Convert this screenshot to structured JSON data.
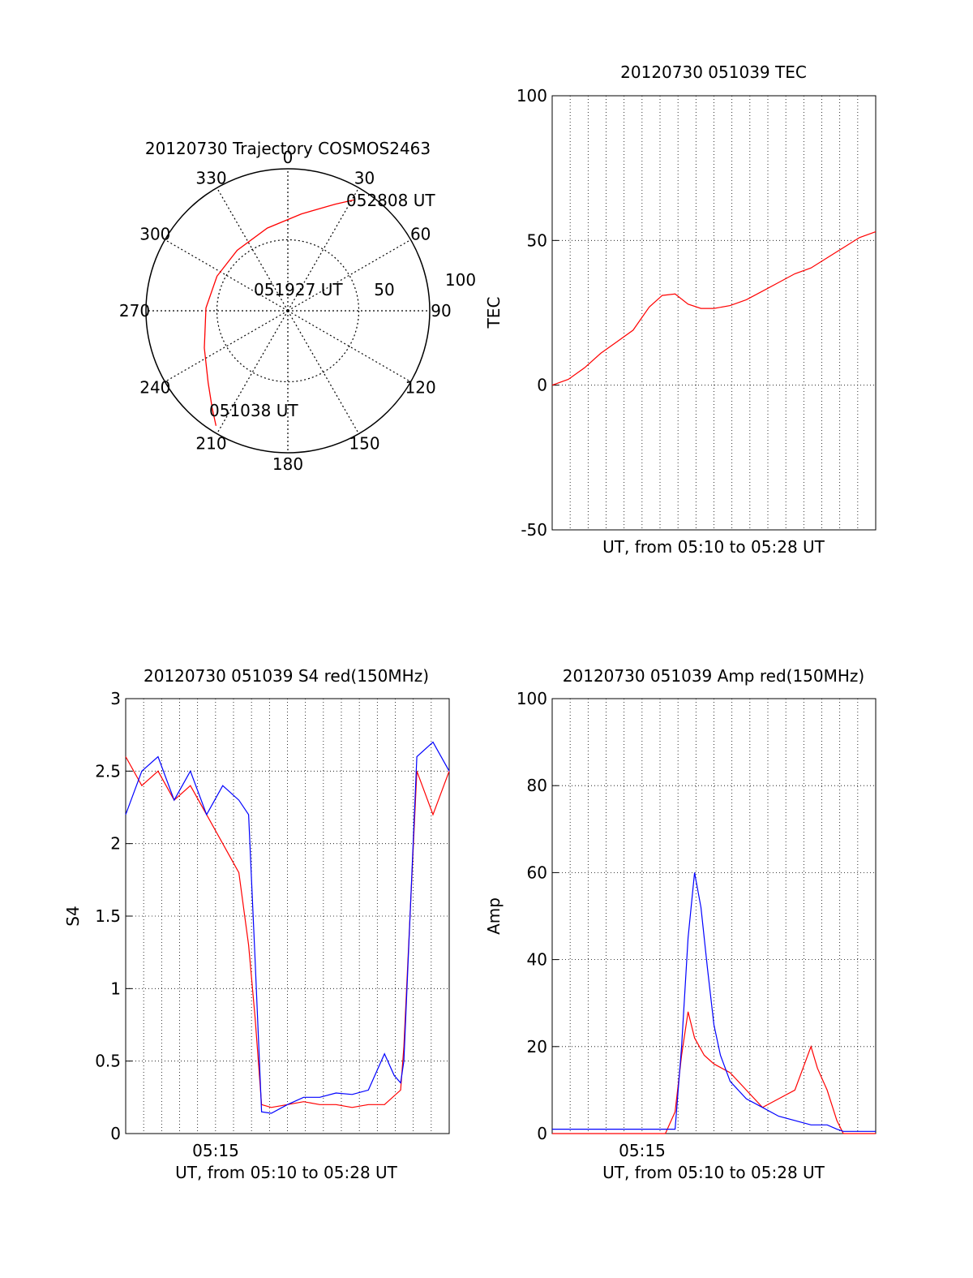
{
  "colors": {
    "red": "#ff0000",
    "blue": "#0000ff",
    "axis": "#000000",
    "grid": "#000000",
    "background": "#ffffff"
  },
  "chart_data": [
    {
      "type": "polar",
      "title": "20120730 Trajectory COSMOS2463",
      "angle_labels": [
        "0",
        "30",
        "60",
        "90",
        "120",
        "150",
        "180",
        "210",
        "240",
        "270",
        "300",
        "330"
      ],
      "radial_labels": [
        "50",
        "100"
      ],
      "annotations": [
        "052808 UT",
        "051927 UT",
        "051038 UT"
      ],
      "trajectory": [
        {
          "azimuth": 212,
          "elevation": 4
        },
        {
          "azimuth": 218,
          "elevation": 12
        },
        {
          "azimuth": 228,
          "elevation": 22
        },
        {
          "azimuth": 246,
          "elevation": 32
        },
        {
          "azimuth": 272,
          "elevation": 38
        },
        {
          "azimuth": 296,
          "elevation": 40
        },
        {
          "azimuth": 320,
          "elevation": 40
        },
        {
          "azimuth": 346,
          "elevation": 36
        },
        {
          "azimuth": 8,
          "elevation": 28
        },
        {
          "azimuth": 24,
          "elevation": 16
        },
        {
          "azimuth": 31,
          "elevation": 8
        }
      ]
    },
    {
      "type": "line",
      "title": "20120730 051039 TEC",
      "xlabel": "UT, from 05:10 to 05:28 UT",
      "ylabel": "TEC",
      "ylim": [
        -50,
        100
      ],
      "yticks": [
        "-50",
        "0",
        "50",
        "100"
      ],
      "xticks": [],
      "grid": true,
      "series": [
        {
          "color": "red",
          "x": [
            0.0,
            0.05,
            0.1,
            0.15,
            0.2,
            0.25,
            0.3,
            0.34,
            0.38,
            0.42,
            0.46,
            0.5,
            0.55,
            0.6,
            0.65,
            0.7,
            0.75,
            0.8,
            0.85,
            0.9,
            0.95,
            1.0
          ],
          "values": [
            0,
            2,
            6,
            11,
            15,
            19,
            27,
            31,
            31.5,
            28,
            26.5,
            26.5,
            27.5,
            29.5,
            32.5,
            35.5,
            38.5,
            40.5,
            44,
            47.5,
            51,
            53
          ]
        }
      ]
    },
    {
      "type": "line",
      "title": "20120730 051039 S4 red(150MHz)",
      "xlabel": "UT, from 05:10 to 05:28 UT",
      "ylabel": "S4",
      "ylim": [
        0,
        3
      ],
      "yticks": [
        "0",
        "0.5",
        "1",
        "1.5",
        "2",
        "2.5",
        "3"
      ],
      "xticks": [
        "05:15"
      ],
      "grid": true,
      "series": [
        {
          "color": "red",
          "x": [
            0.0,
            0.05,
            0.1,
            0.15,
            0.2,
            0.25,
            0.3,
            0.35,
            0.38,
            0.4,
            0.42,
            0.45,
            0.5,
            0.55,
            0.6,
            0.65,
            0.7,
            0.75,
            0.8,
            0.85,
            0.86,
            0.9,
            0.95,
            1.0
          ],
          "values": [
            2.6,
            2.4,
            2.5,
            2.3,
            2.4,
            2.2,
            2.0,
            1.8,
            1.3,
            0.8,
            0.2,
            0.18,
            0.2,
            0.22,
            0.2,
            0.2,
            0.18,
            0.2,
            0.2,
            0.3,
            0.6,
            2.5,
            2.2,
            2.5
          ]
        },
        {
          "color": "blue",
          "x": [
            0.0,
            0.05,
            0.1,
            0.15,
            0.2,
            0.25,
            0.3,
            0.35,
            0.38,
            0.4,
            0.42,
            0.45,
            0.5,
            0.55,
            0.6,
            0.65,
            0.7,
            0.75,
            0.78,
            0.8,
            0.83,
            0.85,
            0.86,
            0.9,
            0.95,
            1.0
          ],
          "values": [
            2.2,
            2.5,
            2.6,
            2.3,
            2.5,
            2.2,
            2.4,
            2.3,
            2.2,
            1.2,
            0.15,
            0.14,
            0.2,
            0.25,
            0.25,
            0.28,
            0.27,
            0.3,
            0.45,
            0.55,
            0.4,
            0.35,
            0.5,
            2.6,
            2.7,
            2.5
          ]
        }
      ]
    },
    {
      "type": "line",
      "title": "20120730 051039 Amp red(150MHz)",
      "xlabel": "UT, from 05:10 to 05:28 UT",
      "ylabel": "Amp",
      "ylim": [
        0,
        100
      ],
      "yticks": [
        "0",
        "20",
        "40",
        "60",
        "80",
        "100"
      ],
      "xticks": [
        "05:15"
      ],
      "grid": true,
      "series": [
        {
          "color": "red",
          "x": [
            0.0,
            0.35,
            0.38,
            0.4,
            0.42,
            0.44,
            0.47,
            0.5,
            0.55,
            0.6,
            0.65,
            0.7,
            0.75,
            0.8,
            0.82,
            0.85,
            0.88,
            0.9,
            1.0
          ],
          "values": [
            0,
            0,
            5,
            18,
            28,
            22,
            18,
            16,
            14,
            10,
            6,
            8,
            10,
            20,
            15,
            10,
            3,
            0,
            0
          ]
        },
        {
          "color": "blue",
          "x": [
            0.0,
            0.38,
            0.4,
            0.42,
            0.44,
            0.46,
            0.48,
            0.5,
            0.52,
            0.55,
            0.6,
            0.65,
            0.7,
            0.75,
            0.8,
            0.85,
            0.88,
            0.9,
            1.0
          ],
          "values": [
            1,
            1,
            20,
            45,
            60,
            52,
            38,
            25,
            18,
            12,
            8,
            6,
            4,
            3,
            2,
            2,
            1,
            0.5,
            0.5
          ]
        }
      ]
    }
  ]
}
